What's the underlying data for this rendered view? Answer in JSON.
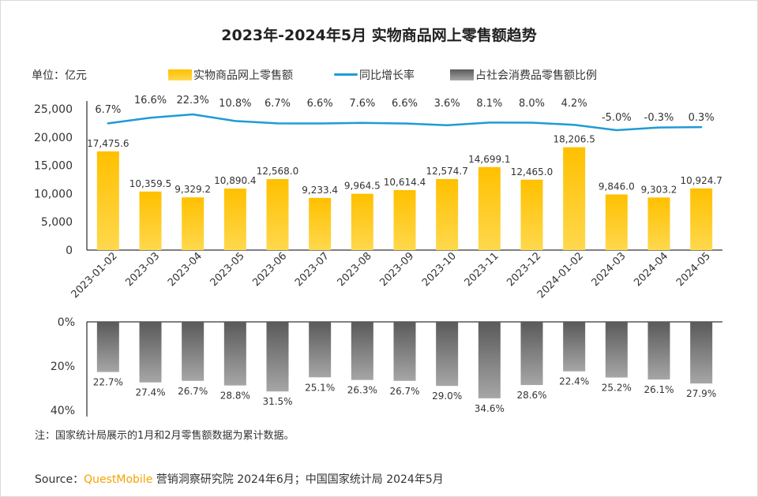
{
  "title": "2023年-2024年5月 实物商品网上零售额趋势",
  "unit_label": "单位：亿元",
  "legend": {
    "bar": "实物商品网上零售额",
    "line": "同比增长率",
    "lower_bar": "占社会消费品零售额比例"
  },
  "colors": {
    "bar_top": "#ffc000",
    "bar_bottom": "#ffd84d",
    "line": "#1e9bd7",
    "lower_bar_top": "#5a5a5a",
    "lower_bar_bottom": "#a6a6a6"
  },
  "chart_data": [
    {
      "type": "bar",
      "categories": [
        "2023-01-02",
        "2023-03",
        "2023-04",
        "2023-05",
        "2023-06",
        "2023-07",
        "2023-08",
        "2023-09",
        "2023-10",
        "2023-11",
        "2023-12",
        "2024-01-02",
        "2024-03",
        "2024-04",
        "2024-05"
      ],
      "series": [
        {
          "name": "实物商品网上零售额",
          "values": [
            17475.6,
            10359.5,
            9329.2,
            10890.4,
            12568.0,
            9233.4,
            9964.5,
            10614.4,
            12574.7,
            14699.1,
            12465.0,
            18206.5,
            9846.0,
            9303.2,
            10924.7
          ],
          "labels": [
            "17,475.6",
            "10,359.5",
            "9,329.2",
            "10,890.4",
            "12,568.0",
            "9,233.4",
            "9,964.5",
            "10,614.4",
            "12,574.7",
            "14,699.1",
            "12,465.0",
            "18,206.5",
            "9,846.0",
            "9,303.2",
            "10,924.7"
          ]
        },
        {
          "name": "同比增长率",
          "type": "line",
          "values": [
            6.7,
            16.6,
            22.3,
            10.8,
            6.7,
            6.6,
            7.6,
            6.6,
            3.6,
            8.1,
            8.0,
            4.2,
            -5.0,
            -0.3,
            0.3
          ],
          "labels": [
            "6.7%",
            "16.6%",
            "22.3%",
            "10.8%",
            "6.7%",
            "6.6%",
            "7.6%",
            "6.6%",
            "3.6%",
            "8.1%",
            "8.0%",
            "4.2%",
            "-5.0%",
            "-0.3%",
            "0.3%"
          ]
        }
      ],
      "ylim": [
        0,
        25000
      ],
      "yticks": [
        "0",
        "5,000",
        "10,000",
        "15,000",
        "20,000",
        "25,000"
      ]
    },
    {
      "type": "bar",
      "orientation": "downward",
      "series": [
        {
          "name": "占社会消费品零售额比例",
          "values": [
            22.7,
            27.4,
            26.7,
            28.8,
            31.5,
            25.1,
            26.3,
            26.7,
            29.0,
            34.6,
            28.6,
            22.4,
            25.2,
            26.1,
            27.9
          ],
          "labels": [
            "22.7%",
            "27.4%",
            "26.7%",
            "28.8%",
            "31.5%",
            "25.1%",
            "26.3%",
            "26.7%",
            "29.0%",
            "34.6%",
            "28.6%",
            "22.4%",
            "25.2%",
            "26.1%",
            "27.9%"
          ]
        }
      ],
      "ylim": [
        0,
        40
      ],
      "yticks": [
        "0%",
        "20%",
        "40%"
      ]
    }
  ],
  "note": "注：国家统计局展示的1月和2月零售额数据为累计数据。",
  "source": {
    "prefix": "Source：",
    "brand": "QuestMobile",
    "rest": " 营销洞察研究院 2024年6月；中国国家统计局 2024年5月"
  }
}
